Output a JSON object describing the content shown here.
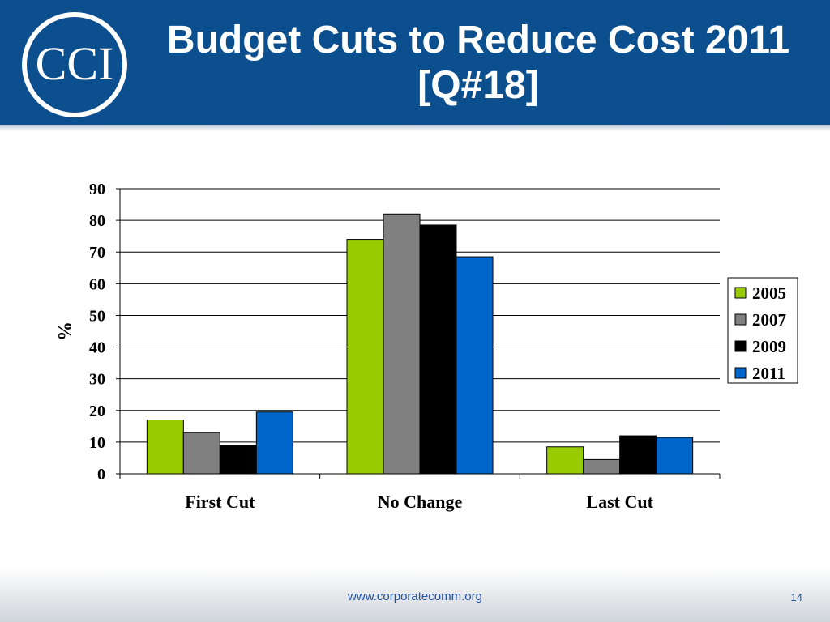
{
  "header": {
    "logo_text": "CCI",
    "title_line1": "Budget Cuts to Reduce Cost 2011",
    "title_line2": "[Q#18]"
  },
  "footer": {
    "url": "www.corporatecomm.org",
    "page_number": "14"
  },
  "chart_data": {
    "type": "bar",
    "categories": [
      "First Cut",
      "No Change",
      "Last Cut"
    ],
    "series": [
      {
        "name": "2005",
        "color": "#99cc00",
        "values": [
          17,
          74,
          8.5
        ]
      },
      {
        "name": "2007",
        "color": "#808080",
        "values": [
          13,
          82,
          4.5
        ]
      },
      {
        "name": "2009",
        "color": "#000000",
        "values": [
          9,
          78.5,
          12
        ]
      },
      {
        "name": "2011",
        "color": "#0066cc",
        "values": [
          19.5,
          68.5,
          11.5
        ]
      }
    ],
    "title": "",
    "xlabel": "",
    "ylabel": "%",
    "ylim": [
      0,
      90
    ],
    "yticks": [
      "0",
      "10",
      "20",
      "30",
      "40",
      "50",
      "60",
      "70",
      "80",
      "90"
    ],
    "grid": true,
    "legend_position": "right"
  }
}
